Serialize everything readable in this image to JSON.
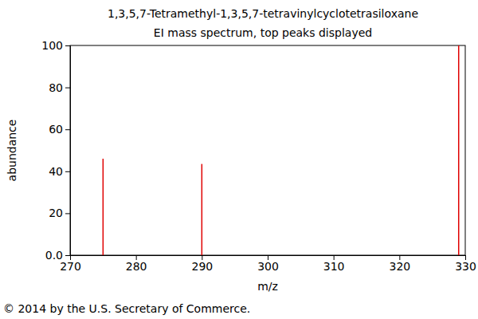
{
  "chart_data": {
    "type": "bar",
    "title": "1,3,5,7-Tetramethyl-1,3,5,7-tetravinylcyclotetrasiloxane",
    "subtitle": "EI mass spectrum, top peaks displayed",
    "x_label": "m/z",
    "y_label": "abundance",
    "annotations": [
      "© 2014 by the U.S. Secretary of Commerce."
    ],
    "x": [
      275,
      290,
      329
    ],
    "values": [
      46,
      43.5,
      100
    ],
    "color": "#e00000",
    "xlim": [
      270,
      330
    ],
    "xticks": [
      270,
      280,
      290,
      300,
      310,
      320,
      330
    ],
    "ylim": [
      0,
      100
    ],
    "yticks": [
      {
        "value": 0,
        "label": "0.0"
      },
      20,
      40,
      60,
      80,
      100
    ],
    "grid": false
  }
}
